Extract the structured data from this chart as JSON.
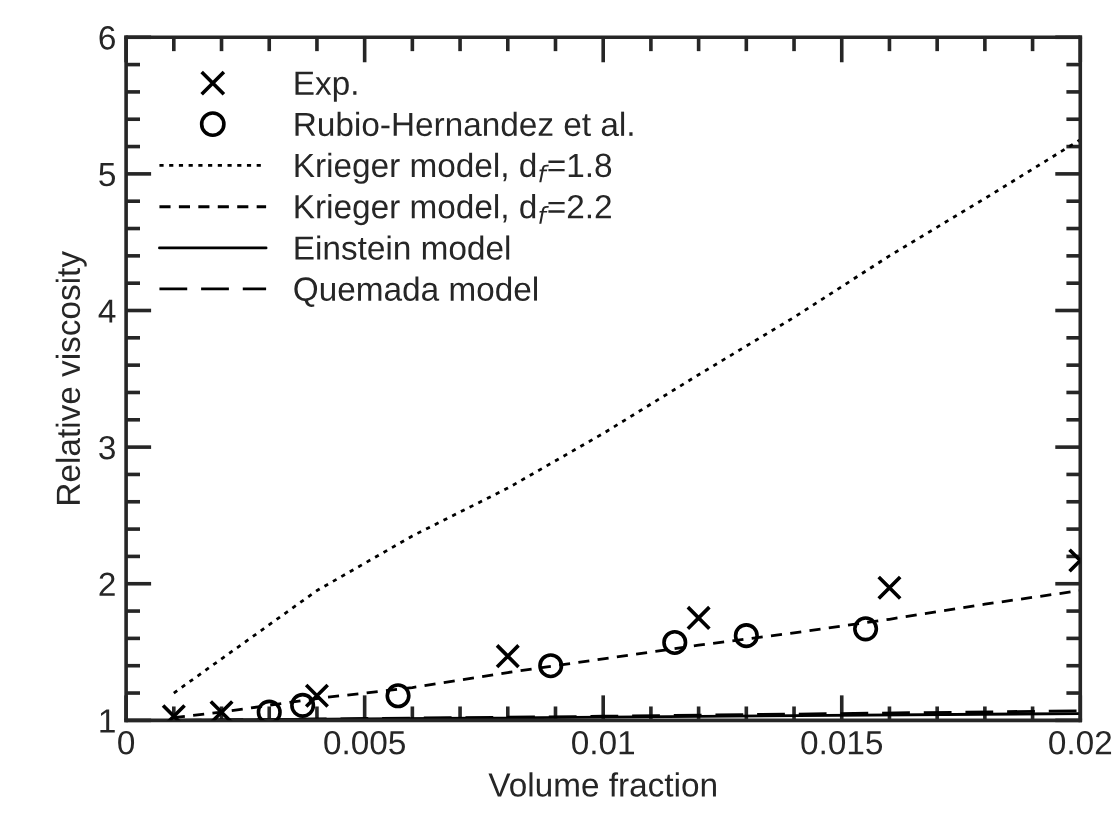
{
  "chart_data": {
    "type": "line",
    "xlabel": "Volume fraction",
    "ylabel": "Relative viscosity",
    "xlim": [
      0,
      0.02
    ],
    "ylim": [
      1,
      6
    ],
    "xticks": [
      0,
      {
        "value": 0.001,
        "label": null
      },
      {
        "value": 0.002,
        "label": null
      },
      {
        "value": 0.003,
        "label": null
      },
      {
        "value": 0.004,
        "label": null
      },
      0.005,
      {
        "value": 0.006,
        "label": null
      },
      {
        "value": 0.007,
        "label": null
      },
      {
        "value": 0.008,
        "label": null
      },
      {
        "value": 0.009,
        "label": null
      },
      0.01,
      {
        "value": 0.011,
        "label": null
      },
      {
        "value": 0.012,
        "label": null
      },
      {
        "value": 0.013,
        "label": null
      },
      {
        "value": 0.014,
        "label": null
      },
      0.015,
      {
        "value": 0.016,
        "label": null
      },
      {
        "value": 0.017,
        "label": null
      },
      {
        "value": 0.018,
        "label": null
      },
      {
        "value": 0.019,
        "label": null
      },
      0.02
    ],
    "yticks": [
      1,
      {
        "value": 1.2,
        "label": null
      },
      {
        "value": 1.4,
        "label": null
      },
      {
        "value": 1.6,
        "label": null
      },
      {
        "value": 1.8,
        "label": null
      },
      2,
      {
        "value": 2.2,
        "label": null
      },
      {
        "value": 2.4,
        "label": null
      },
      {
        "value": 2.6,
        "label": null
      },
      {
        "value": 2.8,
        "label": null
      },
      3,
      {
        "value": 3.2,
        "label": null
      },
      {
        "value": 3.4,
        "label": null
      },
      {
        "value": 3.6,
        "label": null
      },
      {
        "value": 3.8,
        "label": null
      },
      4,
      {
        "value": 4.2,
        "label": null
      },
      {
        "value": 4.4,
        "label": null
      },
      {
        "value": 4.6,
        "label": null
      },
      {
        "value": 4.8,
        "label": null
      },
      5,
      {
        "value": 5.2,
        "label": null
      },
      {
        "value": 5.4,
        "label": null
      },
      {
        "value": 5.6,
        "label": null
      },
      {
        "value": 5.8,
        "label": null
      },
      6
    ],
    "grid": false,
    "legend": "top left",
    "series": [
      {
        "name": "Exp.",
        "type": "scatter",
        "marker": "cross",
        "color": "#000000",
        "x": [
          0.001,
          0.002,
          0.004,
          0.008,
          0.012,
          0.016,
          0.02
        ],
        "values": [
          1.03,
          1.06,
          1.18,
          1.47,
          1.75,
          1.97,
          2.17
        ]
      },
      {
        "name": "Rubio-Hernandez et al.",
        "type": "scatter",
        "marker": "circle",
        "color": "#000000",
        "x": [
          0.003,
          0.0037,
          0.0057,
          0.0089,
          0.0115,
          0.013,
          0.0155
        ],
        "values": [
          1.06,
          1.11,
          1.18,
          1.4,
          1.57,
          1.62,
          1.67
        ]
      },
      {
        "name": "Krieger model, d$_{f}$=1.8",
        "line_style": "dotted",
        "color": "#000000",
        "x": [
          0.001,
          0.002,
          0.004,
          0.006,
          0.008,
          0.01,
          0.012,
          0.014,
          0.016,
          0.018,
          0.02
        ],
        "values": [
          1.2,
          1.45,
          1.95,
          2.35,
          2.7,
          3.1,
          3.53,
          3.95,
          4.4,
          4.82,
          5.25
        ]
      },
      {
        "name": "Krieger model, d$_{f}$=2.2",
        "line_style": "dashed",
        "color": "#000000",
        "x": [
          0.001,
          0.002,
          0.004,
          0.006,
          0.008,
          0.01,
          0.012,
          0.014,
          0.016,
          0.018,
          0.02
        ],
        "values": [
          1.02,
          1.06,
          1.16,
          1.24,
          1.35,
          1.45,
          1.55,
          1.64,
          1.74,
          1.85,
          1.95
        ]
      },
      {
        "name": "Einstein model",
        "line_style": "solid",
        "color": "#000000",
        "x": [
          0.001,
          0.02
        ],
        "values": [
          1.0,
          1.05
        ]
      },
      {
        "name": "Quemada model",
        "line_style": "longdash",
        "color": "#000000",
        "x": [
          0.001,
          0.01,
          0.02
        ],
        "values": [
          1.0,
          1.03,
          1.07
        ]
      }
    ]
  }
}
